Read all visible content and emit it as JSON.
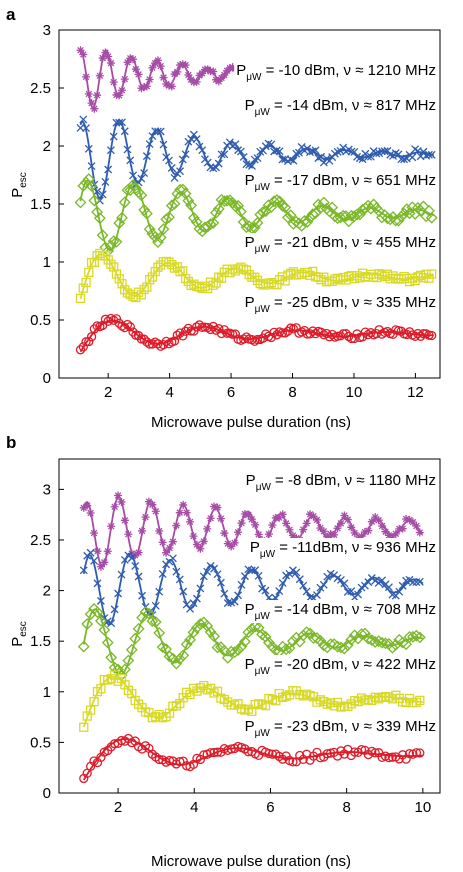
{
  "chart_data": [
    {
      "type": "scatter",
      "panel_label": "a",
      "xlabel": "Microwave pulse duration (ns)",
      "ylabel": "P",
      "ylabel_sub": "esc",
      "xlim": [
        0.4,
        12.8
      ],
      "ylim": [
        0,
        3
      ],
      "xticks": [
        "2",
        "4",
        "6",
        "8",
        "10",
        "12"
      ],
      "yticks": [
        "0",
        "0.5",
        "1",
        "1.5",
        "2",
        "2.5",
        "3"
      ],
      "grid": false,
      "x_range": [
        1.1,
        12.6
      ],
      "series": [
        {
          "label_p": "P",
          "label_sub": "μW",
          "label_rest": " = -10 dBm, ν ≈ 1210 MHz",
          "marker": "star",
          "color": "#a64ca6",
          "freq_ghz": 1.21,
          "offset": 2.62,
          "amp": 0.3,
          "tau": 2.5,
          "phase": 0.6,
          "noise": 0.03
        },
        {
          "label_p": "P",
          "label_sub": "μW",
          "label_rest": " = -14 dBm, ν ≈ 817 MHz",
          "marker": "x",
          "color": "#2e5caf",
          "freq_ghz": 0.817,
          "offset": 1.93,
          "amp": 0.43,
          "tau": 3.4,
          "phase": 0.55,
          "noise": 0.035
        },
        {
          "label_p": "P",
          "label_sub": "μW",
          "label_rest": " = -17 dBm, ν ≈ 651 MHz",
          "marker": "diamond",
          "color": "#7ab829",
          "freq_ghz": 0.651,
          "offset": 1.42,
          "amp": 0.38,
          "tau": 4.5,
          "phase": 0.35,
          "noise": 0.04
        },
        {
          "label_p": "P",
          "label_sub": "μW",
          "label_rest": " = -21 dBm, ν ≈ 455 MHz",
          "marker": "square",
          "color": "#d9d92a",
          "freq_ghz": 0.455,
          "offset": 0.87,
          "amp": 0.25,
          "tau": 4.0,
          "phase": 0.0,
          "noise": 0.025
        },
        {
          "label_p": "P",
          "label_sub": "μW",
          "label_rest": " = -25 dBm, ν ≈ 335 MHz",
          "marker": "circle",
          "color": "#dd1c2a",
          "freq_ghz": 0.335,
          "offset": 0.38,
          "amp": 0.15,
          "tau": 4.5,
          "phase": -0.1,
          "noise": 0.025
        }
      ]
    },
    {
      "type": "scatter",
      "panel_label": "b",
      "xlabel": "Microwave pulse duration (ns)",
      "ylabel": "P",
      "ylabel_sub": "esc",
      "xlim": [
        0.45,
        10.45
      ],
      "ylim": [
        0,
        3.3
      ],
      "xticks": [
        "2",
        "4",
        "6",
        "8",
        "10"
      ],
      "yticks": [
        "0",
        "0.5",
        "1",
        "1.5",
        "2",
        "2.5",
        "3"
      ],
      "grid": false,
      "x_range": [
        1.1,
        10.0
      ],
      "series": [
        {
          "label_p": "P",
          "label_sub": "μW",
          "label_rest": " = -8 dBm, ν ≈ 1180 MHz",
          "marker": "star",
          "color": "#a64ca6",
          "freq_ghz": 1.18,
          "offset": 2.62,
          "amp": 0.38,
          "tau": 5.0,
          "phase": 0.45,
          "noise": 0.035
        },
        {
          "label_p": "P",
          "label_sub": "μW",
          "label_rest": " = -11dBm, ν ≈ 936 MHz",
          "marker": "x",
          "color": "#2e5caf",
          "freq_ghz": 0.936,
          "offset": 2.05,
          "amp": 0.42,
          "tau": 4.5,
          "phase": 0.35,
          "noise": 0.035
        },
        {
          "label_p": "P",
          "label_sub": "μW",
          "label_rest": " = -14 dBm, ν ≈ 708 MHz",
          "marker": "diamond",
          "color": "#7ab829",
          "freq_ghz": 0.708,
          "offset": 1.5,
          "amp": 0.42,
          "tau": 3.5,
          "phase": 0.22,
          "noise": 0.04
        },
        {
          "label_p": "P",
          "label_sub": "μW",
          "label_rest": " = -20 dBm, ν ≈ 422 MHz",
          "marker": "square",
          "color": "#d9d92a",
          "freq_ghz": 0.422,
          "offset": 0.92,
          "amp": 0.3,
          "tau": 3.5,
          "phase": -0.05,
          "noise": 0.03
        },
        {
          "label_p": "P",
          "label_sub": "μW",
          "label_rest": " = -23 dBm, ν ≈ 339 MHz",
          "marker": "circle",
          "color": "#dd1c2a",
          "freq_ghz": 0.339,
          "offset": 0.38,
          "amp": 0.22,
          "tau": 3.2,
          "phase": -0.15,
          "noise": 0.035
        }
      ]
    }
  ]
}
